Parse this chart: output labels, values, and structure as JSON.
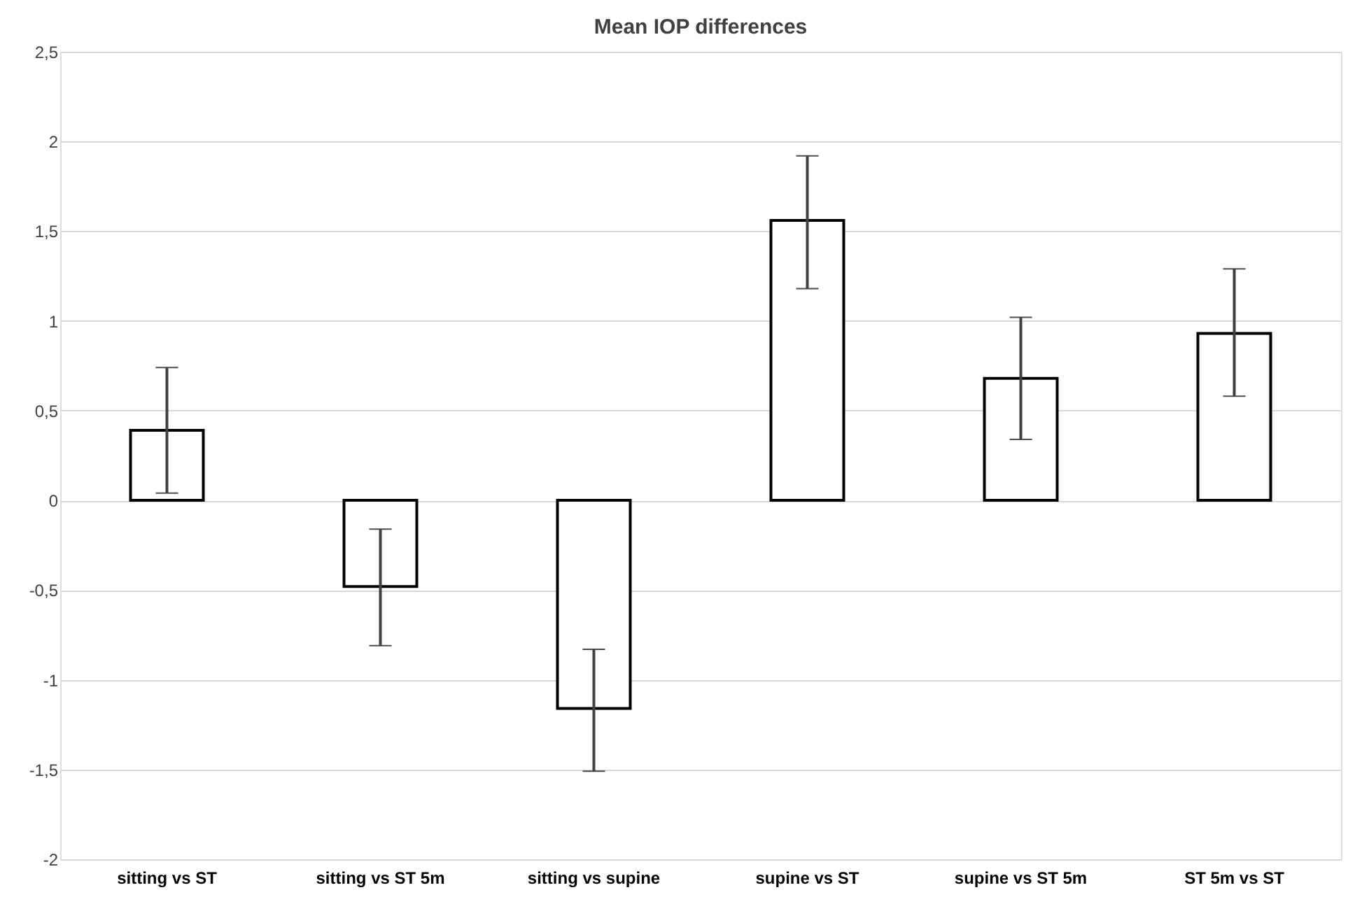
{
  "chart_data": {
    "type": "bar",
    "title": "Mean IOP differences",
    "categories": [
      "sitting vs ST",
      "sitting  vs ST 5m",
      "sitting vs supine",
      "supine vs ST",
      "supine vs ST 5m",
      "ST 5m vs ST"
    ],
    "values": [
      0.39,
      -0.48,
      -1.16,
      1.56,
      0.68,
      0.93
    ],
    "errors": [
      [
        0.04,
        0.74
      ],
      [
        -0.81,
        -0.16
      ],
      [
        -1.51,
        -0.83
      ],
      [
        1.18,
        1.92
      ],
      [
        0.34,
        1.02
      ],
      [
        0.58,
        1.29
      ]
    ],
    "color": "#ffffff",
    "ylim": [
      -2,
      2.5
    ],
    "yticks": [
      -2,
      {
        "value": -1.5,
        "label": "-1,5"
      },
      -1,
      {
        "value": -0.5,
        "label": "-0,5"
      },
      0,
      {
        "value": 0.5,
        "label": "0,5"
      },
      1,
      {
        "value": 1.5,
        "label": "1,5"
      },
      2,
      {
        "value": 2.5,
        "label": "2,5"
      }
    ],
    "grid": "y"
  }
}
